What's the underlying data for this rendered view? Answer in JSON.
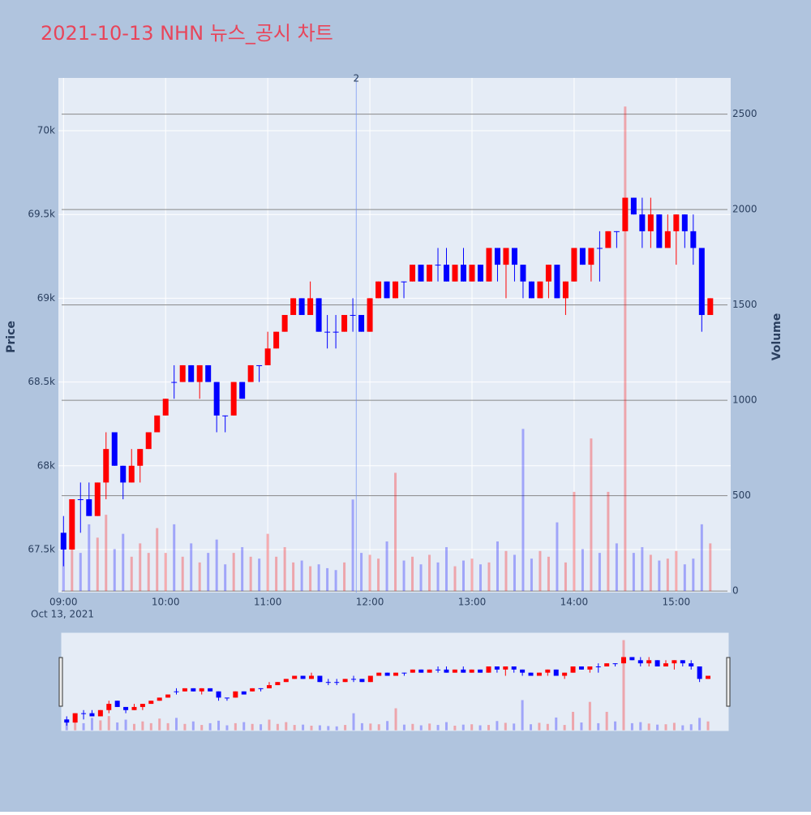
{
  "chart_data": {
    "type": "candlestick",
    "title": "2021-10-13 NHN 뉴스_공시 차트",
    "y_title": "Price",
    "y2_title": "Volume",
    "x_date_label": "Oct 13, 2021",
    "increasing_color": "#ff0000",
    "decreasing_color": "#0000ff",
    "news_markers": [
      {
        "x": "2021-10-13 11:52",
        "label": "2"
      }
    ],
    "x": [
      "2021-10-13 09:00",
      "2021-10-13 09:05",
      "2021-10-13 09:10",
      "2021-10-13 09:15",
      "2021-10-13 09:20",
      "2021-10-13 09:25",
      "2021-10-13 09:30",
      "2021-10-13 09:35",
      "2021-10-13 09:40",
      "2021-10-13 09:45",
      "2021-10-13 09:50",
      "2021-10-13 09:55",
      "2021-10-13 10:00",
      "2021-10-13 10:05",
      "2021-10-13 10:10",
      "2021-10-13 10:15",
      "2021-10-13 10:20",
      "2021-10-13 10:25",
      "2021-10-13 10:30",
      "2021-10-13 10:35",
      "2021-10-13 10:40",
      "2021-10-13 10:45",
      "2021-10-13 10:50",
      "2021-10-13 10:55",
      "2021-10-13 11:00",
      "2021-10-13 11:05",
      "2021-10-13 11:10",
      "2021-10-13 11:15",
      "2021-10-13 11:20",
      "2021-10-13 11:25",
      "2021-10-13 11:30",
      "2021-10-13 11:35",
      "2021-10-13 11:40",
      "2021-10-13 11:45",
      "2021-10-13 11:50",
      "2021-10-13 11:55",
      "2021-10-13 12:00",
      "2021-10-13 12:05",
      "2021-10-13 12:10",
      "2021-10-13 12:15",
      "2021-10-13 12:20",
      "2021-10-13 12:25",
      "2021-10-13 12:30",
      "2021-10-13 12:35",
      "2021-10-13 12:40",
      "2021-10-13 12:45",
      "2021-10-13 12:50",
      "2021-10-13 12:55",
      "2021-10-13 13:00",
      "2021-10-13 13:05",
      "2021-10-13 13:10",
      "2021-10-13 13:15",
      "2021-10-13 13:20",
      "2021-10-13 13:25",
      "2021-10-13 13:30",
      "2021-10-13 13:35",
      "2021-10-13 13:40",
      "2021-10-13 13:45",
      "2021-10-13 13:50",
      "2021-10-13 13:55",
      "2021-10-13 14:00",
      "2021-10-13 14:05",
      "2021-10-13 14:10",
      "2021-10-13 14:15",
      "2021-10-13 14:20",
      "2021-10-13 14:25",
      "2021-10-13 14:30",
      "2021-10-13 14:35",
      "2021-10-13 14:40",
      "2021-10-13 14:45",
      "2021-10-13 14:50",
      "2021-10-13 14:55",
      "2021-10-13 15:00",
      "2021-10-13 15:05",
      "2021-10-13 15:10",
      "2021-10-13 15:15",
      "2021-10-13 15:20"
    ],
    "open": [
      67600,
      67500,
      67800,
      67800,
      67700,
      67900,
      68200,
      68000,
      67900,
      68000,
      68100,
      68200,
      68300,
      68500,
      68500,
      68600,
      68500,
      68600,
      68500,
      68300,
      68300,
      68500,
      68500,
      68600,
      68600,
      68700,
      68800,
      68900,
      69000,
      68900,
      69000,
      68800,
      68800,
      68800,
      68900,
      68900,
      68800,
      69000,
      69100,
      69000,
      69100,
      69100,
      69200,
      69100,
      69200,
      69200,
      69100,
      69200,
      69100,
      69200,
      69100,
      69300,
      69200,
      69300,
      69200,
      69100,
      69000,
      69100,
      69200,
      69000,
      69100,
      69300,
      69200,
      69300,
      69300,
      69400,
      69400,
      69600,
      69500,
      69400,
      69500,
      69300,
      69400,
      69500,
      69400,
      69300,
      68900
    ],
    "high": [
      67700,
      67800,
      67900,
      67900,
      67900,
      68200,
      68200,
      68000,
      68100,
      68100,
      68200,
      68300,
      68400,
      68600,
      68600,
      68600,
      68600,
      68600,
      68500,
      68300,
      68500,
      68500,
      68600,
      68600,
      68800,
      68800,
      68900,
      69000,
      69000,
      69100,
      69000,
      68900,
      68900,
      68900,
      69000,
      68900,
      69000,
      69100,
      69100,
      69100,
      69100,
      69200,
      69200,
      69200,
      69300,
      69300,
      69200,
      69300,
      69200,
      69200,
      69300,
      69300,
      69300,
      69300,
      69200,
      69100,
      69100,
      69200,
      69200,
      69100,
      69300,
      69300,
      69300,
      69400,
      69400,
      69400,
      69600,
      69600,
      69600,
      69600,
      69500,
      69500,
      69500,
      69500,
      69500,
      69300,
      69000
    ],
    "low": [
      67400,
      67500,
      67600,
      67700,
      67700,
      67800,
      68000,
      67800,
      67900,
      67900,
      68100,
      68200,
      68300,
      68400,
      68500,
      68500,
      68400,
      68500,
      68200,
      68200,
      68300,
      68400,
      68500,
      68500,
      68600,
      68700,
      68800,
      68900,
      68900,
      68900,
      68800,
      68700,
      68700,
      68800,
      68800,
      68800,
      68800,
      69000,
      69000,
      69000,
      69000,
      69100,
      69100,
      69100,
      69100,
      69100,
      69100,
      69100,
      69100,
      69100,
      69100,
      69100,
      69000,
      69100,
      69000,
      69000,
      69000,
      69000,
      69000,
      68900,
      69100,
      69200,
      69100,
      69100,
      69300,
      69300,
      69400,
      69500,
      69300,
      69300,
      69300,
      69300,
      69200,
      69300,
      69200,
      68800,
      68900
    ],
    "close": [
      67500,
      67800,
      67800,
      67700,
      67900,
      68100,
      68000,
      67900,
      68000,
      68100,
      68200,
      68300,
      68400,
      68500,
      68600,
      68500,
      68600,
      68500,
      68300,
      68300,
      68500,
      68400,
      68600,
      68600,
      68700,
      68800,
      68900,
      69000,
      68900,
      69000,
      68800,
      68800,
      68800,
      68900,
      68900,
      68800,
      69000,
      69100,
      69000,
      69100,
      69100,
      69200,
      69100,
      69200,
      69200,
      69100,
      69200,
      69100,
      69200,
      69100,
      69300,
      69200,
      69300,
      69200,
      69100,
      69000,
      69100,
      69200,
      69000,
      69100,
      69300,
      69200,
      69300,
      69300,
      69400,
      69400,
      69600,
      69500,
      69400,
      69500,
      69300,
      69400,
      69500,
      69400,
      69300,
      68900,
      69000
    ],
    "volume": [
      300,
      250,
      200,
      350,
      280,
      400,
      220,
      300,
      180,
      250,
      200,
      330,
      200,
      350,
      180,
      250,
      150,
      200,
      270,
      140,
      200,
      230,
      180,
      170,
      300,
      180,
      230,
      150,
      160,
      130,
      140,
      120,
      110,
      150,
      480,
      200,
      190,
      170,
      260,
      620,
      160,
      180,
      140,
      190,
      150,
      230,
      130,
      160,
      170,
      140,
      150,
      260,
      210,
      190,
      850,
      170,
      210,
      180,
      360,
      150,
      520,
      220,
      800,
      200,
      520,
      250,
      2540,
      200,
      230,
      190,
      160,
      170,
      210,
      140,
      170,
      350,
      250
    ],
    "xlim": [
      "2021-10-13 08:57",
      "2021-10-13 15:32"
    ],
    "xticks": [
      {
        "value": "2021-10-13 09:00",
        "label": "09:00"
      },
      {
        "value": "2021-10-13 10:00",
        "label": "10:00"
      },
      {
        "value": "2021-10-13 11:00",
        "label": "11:00"
      },
      {
        "value": "2021-10-13 12:00",
        "label": "12:00"
      },
      {
        "value": "2021-10-13 13:00",
        "label": "13:00"
      },
      {
        "value": "2021-10-13 14:00",
        "label": "14:00"
      },
      {
        "value": "2021-10-13 15:00",
        "label": "15:00"
      }
    ],
    "ylim": [
      67243,
      70315
    ],
    "yticks": [
      {
        "value": 67500,
        "label": "67.5k"
      },
      {
        "value": 68000,
        "label": "68k"
      },
      {
        "value": 68500,
        "label": "68.5k"
      },
      {
        "value": 69000,
        "label": "69k"
      },
      {
        "value": 69500,
        "label": "69.5k"
      },
      {
        "value": 70000,
        "label": "70k"
      }
    ],
    "y2lim": [
      -8,
      2690
    ],
    "y2ticks": [
      0,
      500,
      1000,
      1500,
      2000,
      2500
    ],
    "range_slider": true
  }
}
